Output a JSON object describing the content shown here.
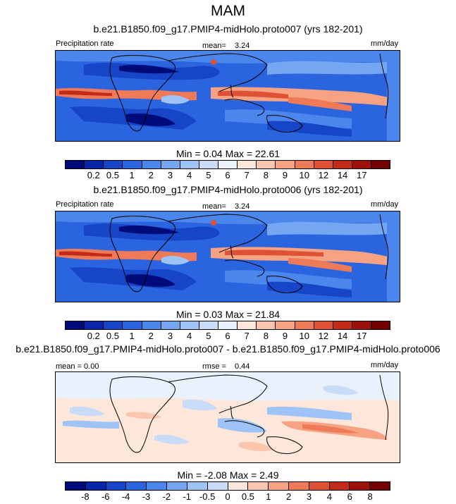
{
  "figure_title": "MAM",
  "panels": [
    {
      "title": "b.e21.B1850.f09_g17.PMIP4-midHolo.proto007 (yrs 182-201)",
      "left_label": "Precipitation rate",
      "center_label": "mean=",
      "center_value": "3.24",
      "right_label": "mm/day",
      "minmax": "Min =   0.04 Max =  22.61",
      "colorbar": {
        "colors": [
          "#000b7a",
          "#0a26a8",
          "#1645c8",
          "#2a64de",
          "#4a86ec",
          "#74a6f2",
          "#9ec3f6",
          "#c8dcf8",
          "#e8f1fc",
          "#fde6da",
          "#fbc6ae",
          "#f7a383",
          "#ee7a58",
          "#de5135",
          "#c42a18",
          "#9e100a",
          "#750000"
        ],
        "ticks": [
          "0.2",
          "0.5",
          "1",
          "2",
          "3",
          "4",
          "5",
          "6",
          "7",
          "8",
          "9",
          "10",
          "12",
          "14",
          "17"
        ]
      }
    },
    {
      "title": "b.e21.B1850.f09_g17.PMIP4-midHolo.proto006 (yrs 182-201)",
      "left_label": "Precipitation rate",
      "center_label": "mean=",
      "center_value": "3.24",
      "right_label": "mm/day",
      "minmax": "Min =   0.03 Max =  21.84",
      "colorbar": {
        "colors": [
          "#000b7a",
          "#0a26a8",
          "#1645c8",
          "#2a64de",
          "#4a86ec",
          "#74a6f2",
          "#9ec3f6",
          "#c8dcf8",
          "#e8f1fc",
          "#fde6da",
          "#fbc6ae",
          "#f7a383",
          "#ee7a58",
          "#de5135",
          "#c42a18",
          "#9e100a",
          "#750000"
        ],
        "ticks": [
          "0.2",
          "0.5",
          "1",
          "2",
          "3",
          "4",
          "5",
          "6",
          "7",
          "8",
          "9",
          "10",
          "12",
          "14",
          "17"
        ]
      }
    },
    {
      "title": "b.e21.B1850.f09_g17.PMIP4-midHolo.proto007 - b.e21.B1850.f09_g17.PMIP4-midHolo.proto006",
      "left_label": "mean =  0.00",
      "center_label": "rmse =",
      "center_value": "0.44",
      "right_label": "mm/day",
      "minmax": "Min =  -2.08 Max =   2.49",
      "colorbar": {
        "colors": [
          "#000b7a",
          "#0a26a8",
          "#1645c8",
          "#2a64de",
          "#4a86ec",
          "#74a6f2",
          "#9ec3f6",
          "#c8dcf8",
          "#fde6da",
          "#fbc6ae",
          "#f7a383",
          "#ee7a58",
          "#de5135",
          "#c42a18",
          "#9e100a",
          "#750000"
        ],
        "ticks": [
          "-8",
          "-6",
          "-4",
          "-3",
          "-2",
          "-1",
          "-0.5",
          "0",
          "0.5",
          "1",
          "2",
          "3",
          "4",
          "6",
          "8"
        ]
      }
    }
  ]
}
